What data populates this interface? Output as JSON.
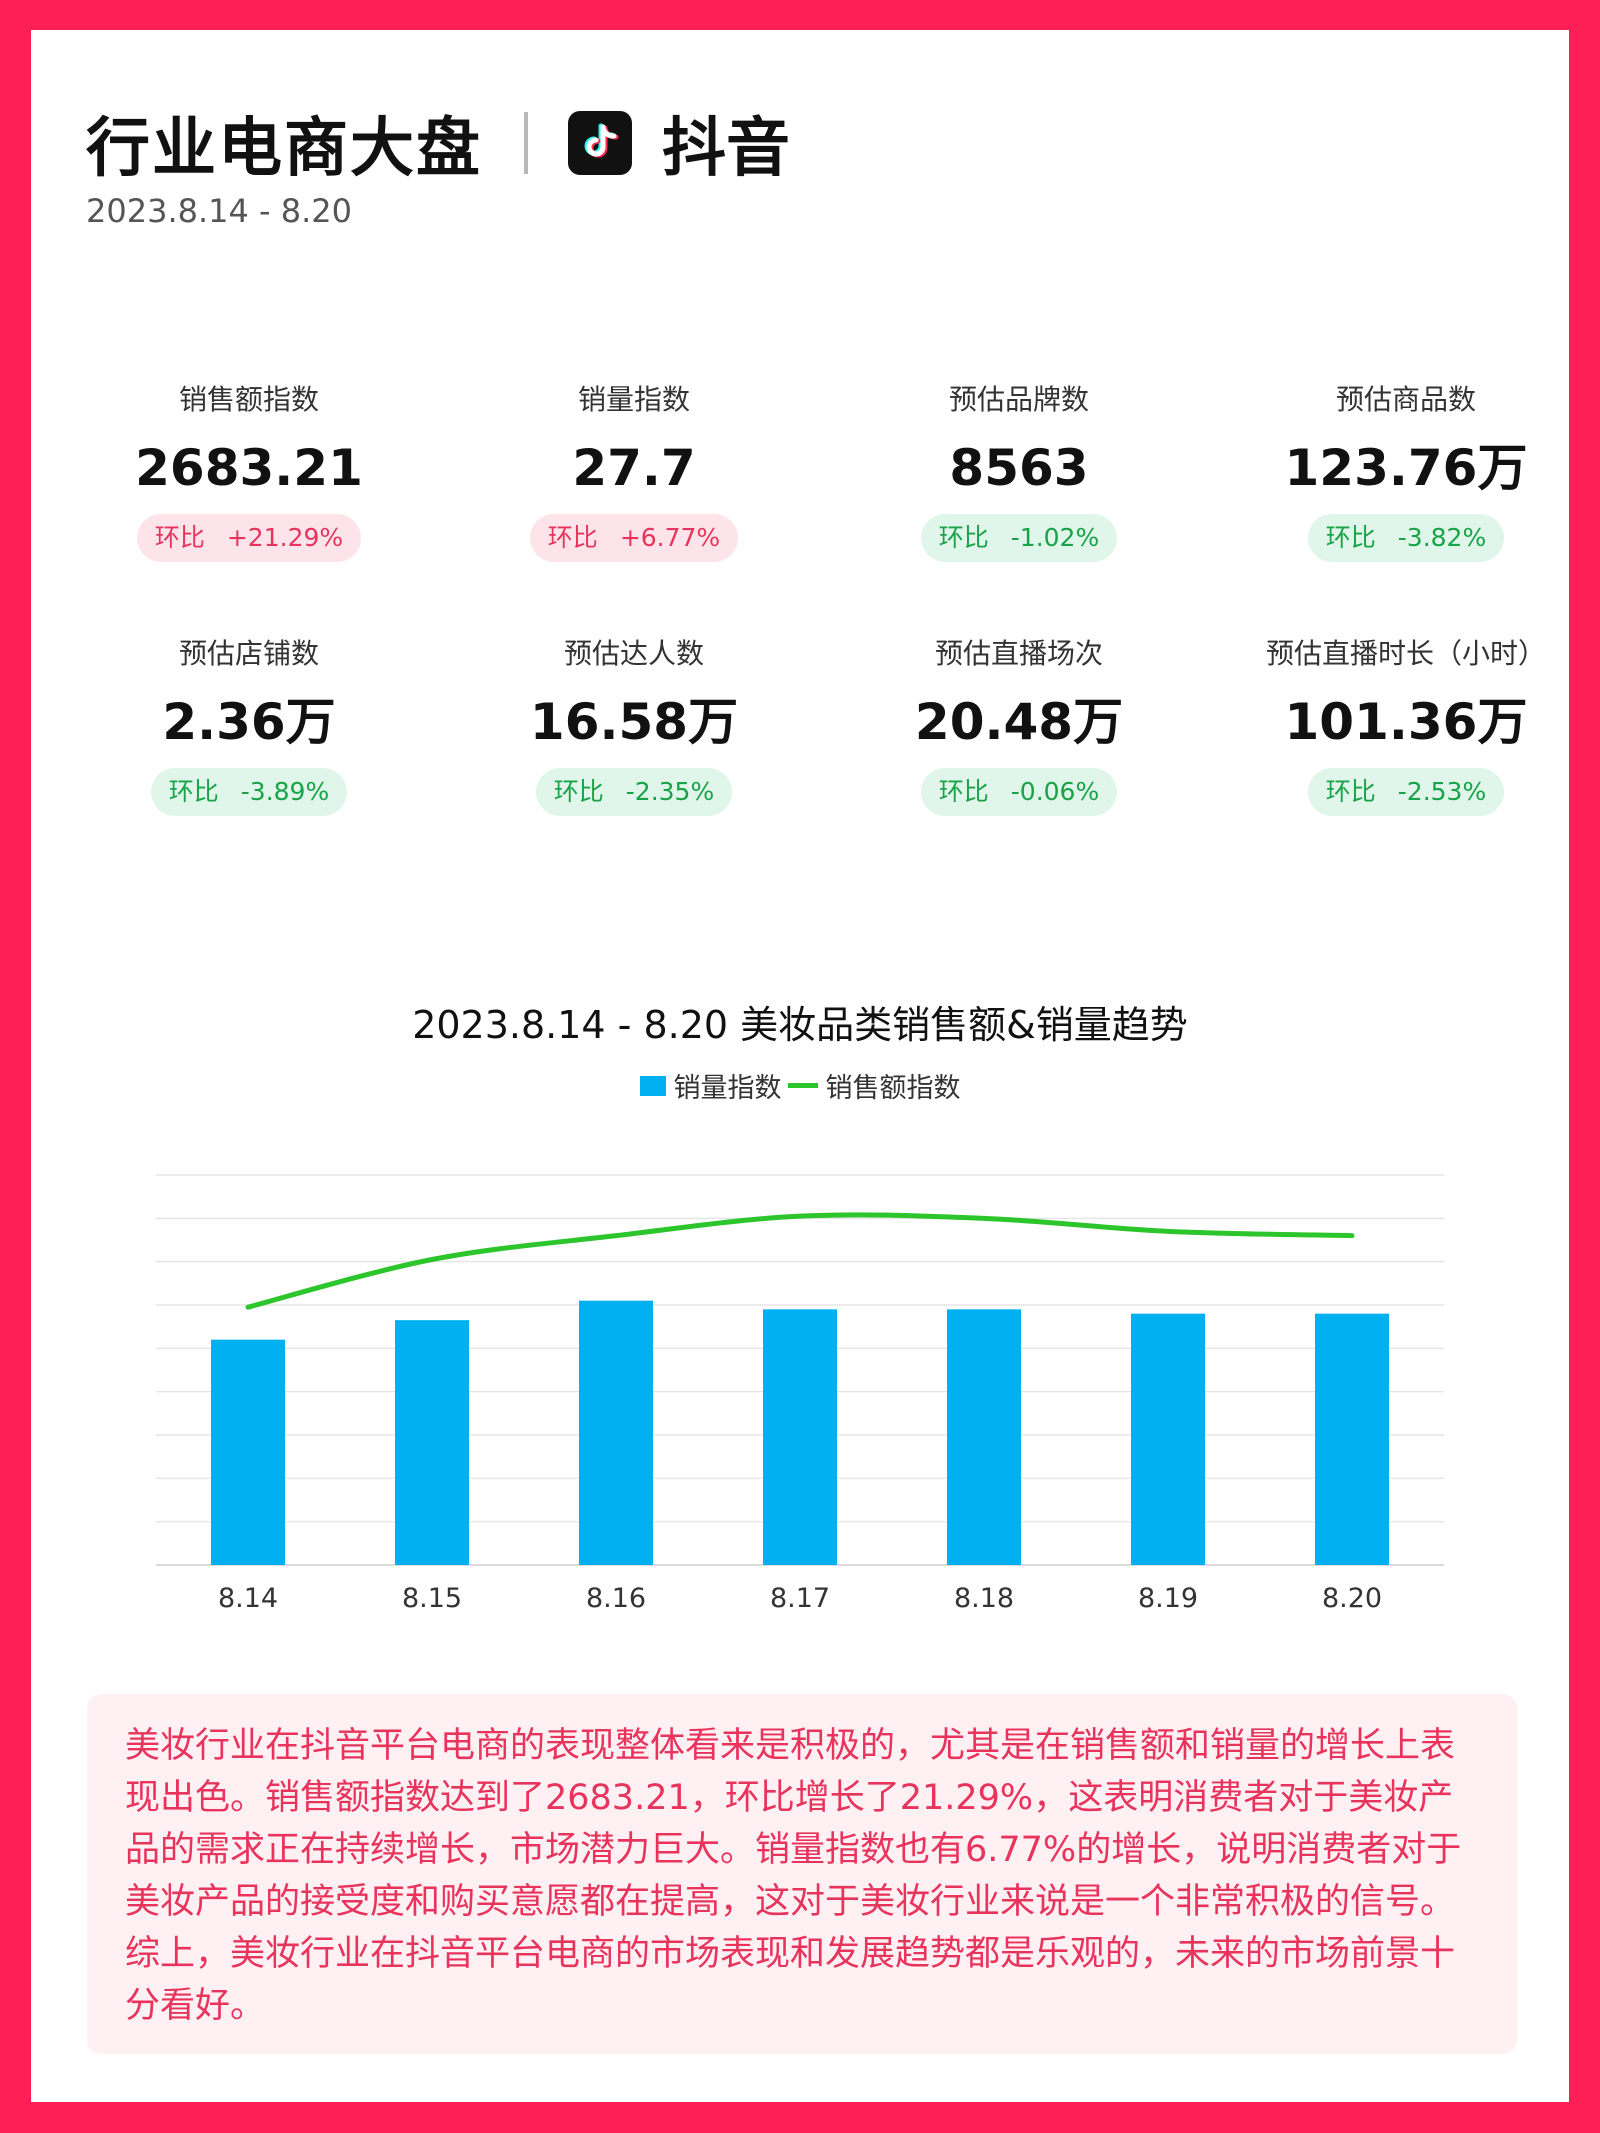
{
  "header": {
    "title": "行业电商大盘",
    "platform": "抖音",
    "date_range": "2023.8.14 - 8.20"
  },
  "metrics": [
    {
      "label": "销售额指数",
      "value": "2683.21",
      "change_label": "环比",
      "change": "+21.29%",
      "trend": "up"
    },
    {
      "label": "销量指数",
      "value": "27.7",
      "change_label": "环比",
      "change": "+6.77%",
      "trend": "up"
    },
    {
      "label": "预估品牌数",
      "value": "8563",
      "change_label": "环比",
      "change": "-1.02%",
      "trend": "down"
    },
    {
      "label": "预估商品数",
      "value": "123.76万",
      "change_label": "环比",
      "change": "-3.82%",
      "trend": "down"
    },
    {
      "label": "预估店铺数",
      "value": "2.36万",
      "change_label": "环比",
      "change": "-3.89%",
      "trend": "down"
    },
    {
      "label": "预估达人数",
      "value": "16.58万",
      "change_label": "环比",
      "change": "-2.35%",
      "trend": "down"
    },
    {
      "label": "预估直播场次",
      "value": "20.48万",
      "change_label": "环比",
      "change": "-0.06%",
      "trend": "down"
    },
    {
      "label": "预估直播时长（小时）",
      "value": "101.36万",
      "change_label": "环比",
      "change": "-2.53%",
      "trend": "down"
    }
  ],
  "chart_data": {
    "type": "bar",
    "title": "2023.8.14 - 8.20 美妆品类销售额&销量趋势",
    "categories": [
      "8.14",
      "8.15",
      "8.16",
      "8.17",
      "8.18",
      "8.19",
      "8.20"
    ],
    "series": [
      {
        "name": "销量指数",
        "type": "bar",
        "color": "#00b0f0",
        "values": [
          5.2,
          5.65,
          6.1,
          5.9,
          5.9,
          5.8,
          5.8
        ]
      },
      {
        "name": "销售额指数",
        "type": "line",
        "color": "#2cc52c",
        "values": [
          5.95,
          7.05,
          7.6,
          8.05,
          8.0,
          7.7,
          7.6
        ]
      }
    ],
    "ylim": [
      0,
      9
    ],
    "grid": true,
    "legend": "top-center"
  },
  "summary": "美妆行业在抖音平台电商的表现整体看来是积极的，尤其是在销售额和销量的增长上表现出色。销售额指数达到了2683.21，环比增长了21.29%，这表明消费者对于美妆产品的需求正在持续增长，市场潜力巨大。销量指数也有6.77%的增长，说明消费者对于美妆产品的接受度和购买意愿都在提高，这对于美妆行业来说是一个非常积极的信号。综上，美妆行业在抖音平台电商的市场表现和发展趋势都是乐观的，未来的市场前景十分看好。"
}
